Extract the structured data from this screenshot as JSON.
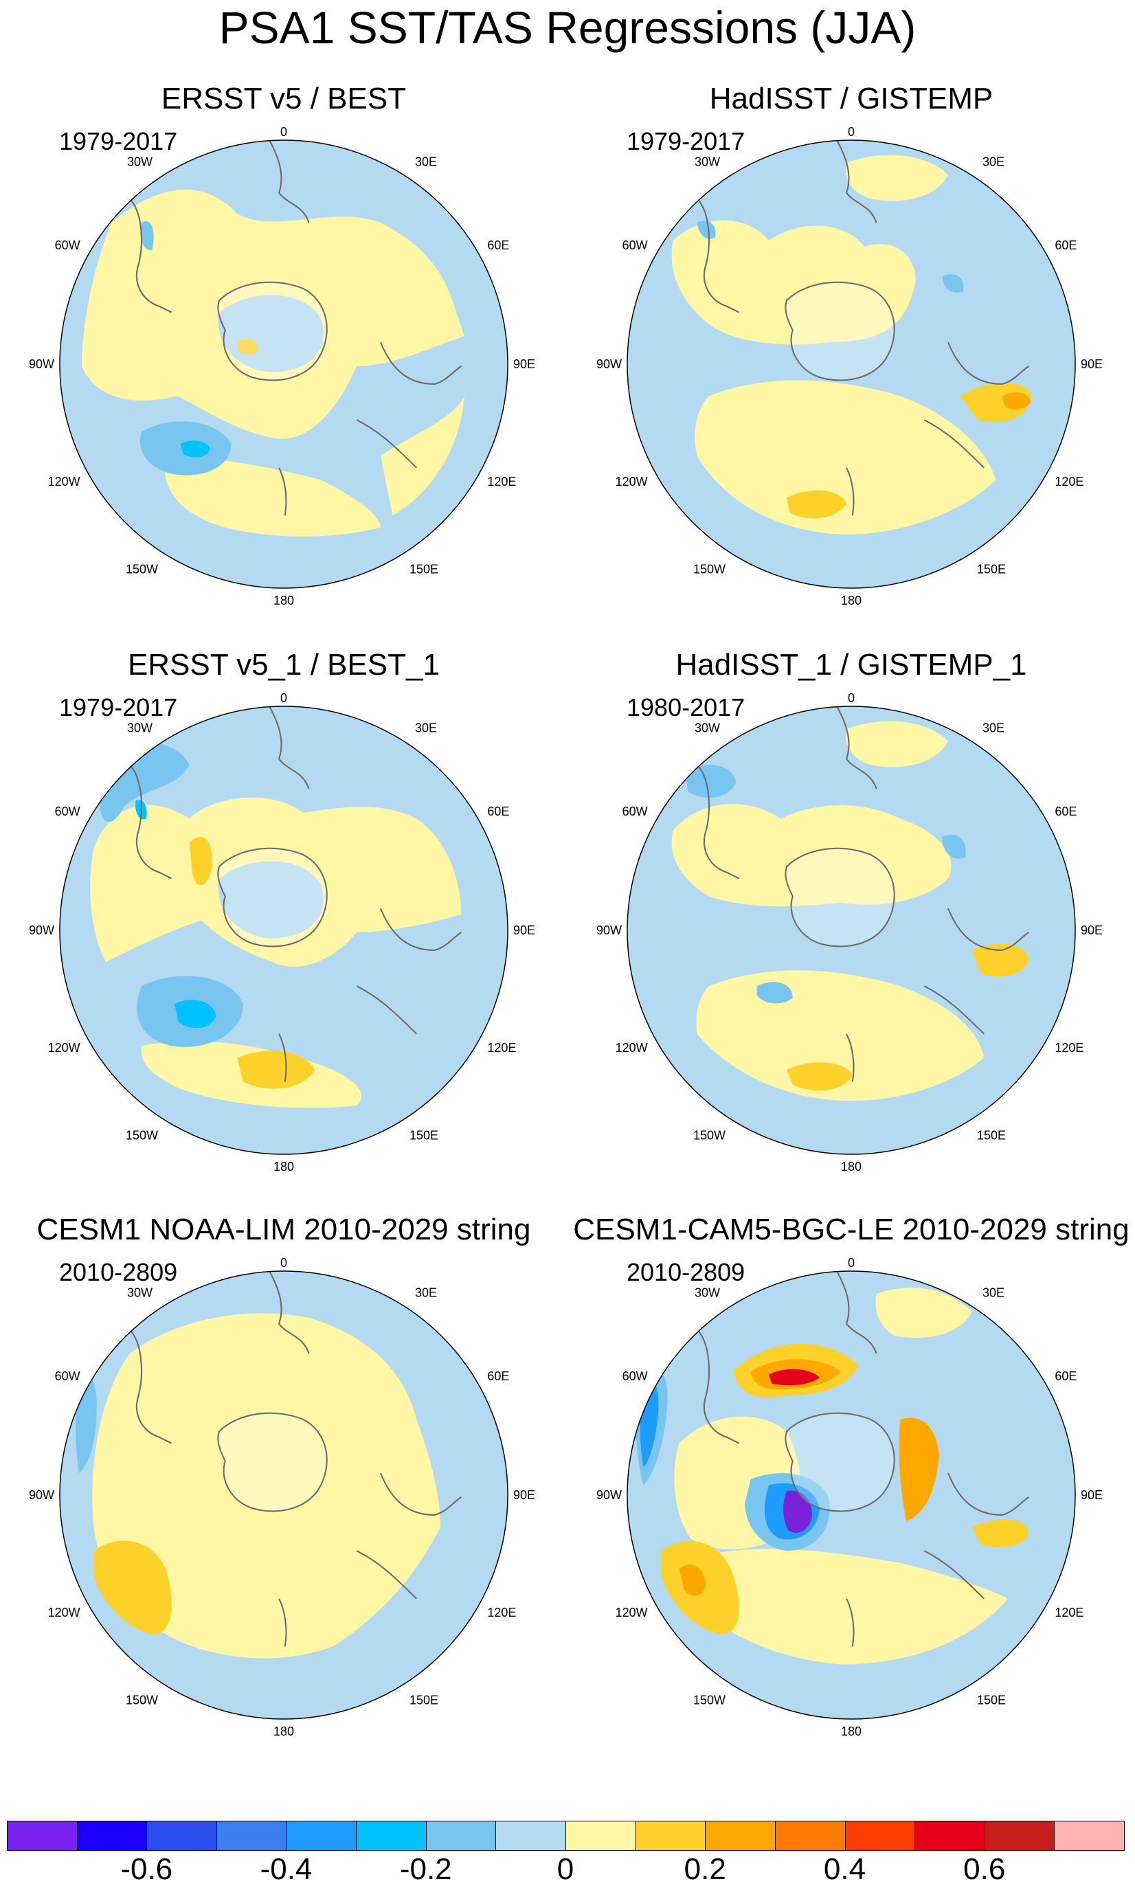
{
  "figure": {
    "title": "PSA1 SST/TAS Regressions (JJA)"
  },
  "palette": {
    "ocean_light_blue": "#b3daf1",
    "land_yellow": "#fff6a6",
    "mid_blue": "#78c6f0",
    "deep_blue": "#1e9bff",
    "cyan": "#00c2ff",
    "gold": "#ffd12b",
    "orange": "#ffa800",
    "red": "#e6001a",
    "purple": "#7a22d9",
    "coast_line": "#6b6b6b"
  },
  "panels": [
    {
      "title": "ERSST v5 / BEST",
      "period": "1979-2017",
      "pattern": "A"
    },
    {
      "title": "HadISST / GISTEMP",
      "period": "1979-2017",
      "pattern": "B"
    },
    {
      "title": "ERSST v5_1 / BEST_1",
      "period": "1979-2017",
      "pattern": "C"
    },
    {
      "title": "HadISST_1 / GISTEMP_1",
      "period": "1980-2017",
      "pattern": "D"
    },
    {
      "title": "CESM1 NOAA-LIM 2010-2029 string",
      "period": "2010-2809",
      "pattern": "E"
    },
    {
      "title": "CESM1-CAM5-BGC-LE 2010-2029 string",
      "period": "2010-2809",
      "pattern": "F"
    }
  ],
  "longitude_labels": {
    "l0": "0",
    "l30e": "30E",
    "l60e": "60E",
    "l90e": "90E",
    "l120e": "120E",
    "l150e": "150E",
    "l180": "180",
    "l150w": "150W",
    "l120w": "120W",
    "l90w": "90W",
    "l60w": "60W",
    "l30w": "30W"
  },
  "colorbar": {
    "colors": [
      "#7a22f0",
      "#1a00ff",
      "#2c4ff0",
      "#3a7ff0",
      "#1e9bff",
      "#00c2ff",
      "#78c6f0",
      "#b3daf1",
      "#fff6a6",
      "#ffd12b",
      "#ffa800",
      "#ff7a00",
      "#ff3c00",
      "#e6001a",
      "#c81e1e",
      "#ffb2b2"
    ],
    "tick_labels": [
      "-0.6",
      "-0.4",
      "-0.2",
      "0",
      "0.2",
      "0.4",
      "0.6"
    ]
  }
}
